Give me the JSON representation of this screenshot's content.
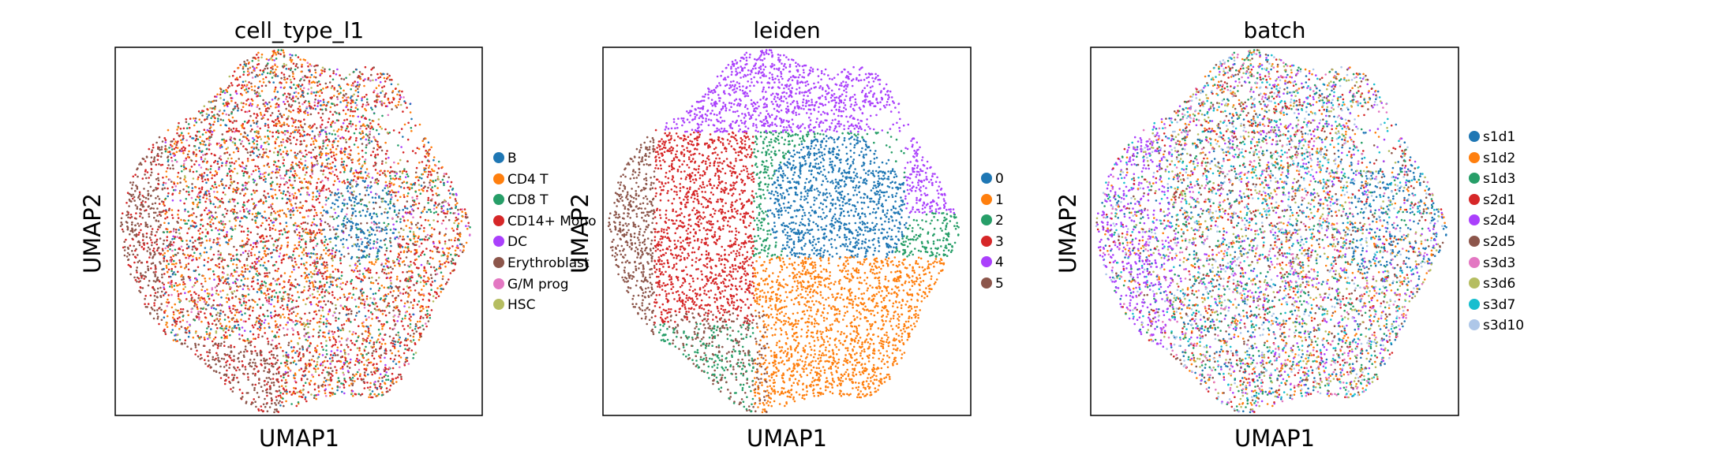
{
  "chart_data": [
    {
      "type": "scatter",
      "title": "cell_type_l1",
      "xlabel": "UMAP1",
      "ylabel": "UMAP2",
      "grid": false,
      "legend_position": "right",
      "series": [
        {
          "name": "B",
          "color": "#1f77b4"
        },
        {
          "name": "CD4 T",
          "color": "#ff7f0e"
        },
        {
          "name": "CD8 T",
          "color": "#279e68"
        },
        {
          "name": "CD14+ Mono",
          "color": "#d62728"
        },
        {
          "name": "DC",
          "color": "#aa40fc"
        },
        {
          "name": "Erythroblast",
          "color": "#8c564b"
        },
        {
          "name": "G/M prog",
          "color": "#e377c2"
        },
        {
          "name": "HSC",
          "color": "#b5bd61"
        }
      ]
    },
    {
      "type": "scatter",
      "title": "leiden",
      "xlabel": "UMAP1",
      "ylabel": "UMAP2",
      "grid": false,
      "legend_position": "right",
      "series": [
        {
          "name": "0",
          "color": "#1f77b4"
        },
        {
          "name": "1",
          "color": "#ff7f0e"
        },
        {
          "name": "2",
          "color": "#279e68"
        },
        {
          "name": "3",
          "color": "#d62728"
        },
        {
          "name": "4",
          "color": "#aa40fc"
        },
        {
          "name": "5",
          "color": "#8c564b"
        }
      ]
    },
    {
      "type": "scatter",
      "title": "batch",
      "xlabel": "UMAP1",
      "ylabel": "UMAP2",
      "grid": false,
      "legend_position": "right",
      "series": [
        {
          "name": "s1d1",
          "color": "#1f77b4"
        },
        {
          "name": "s1d2",
          "color": "#ff7f0e"
        },
        {
          "name": "s1d3",
          "color": "#279e68"
        },
        {
          "name": "s2d1",
          "color": "#d62728"
        },
        {
          "name": "s2d4",
          "color": "#aa40fc"
        },
        {
          "name": "s2d5",
          "color": "#8c564b"
        },
        {
          "name": "s3d3",
          "color": "#e377c2"
        },
        {
          "name": "s3d6",
          "color": "#b5bd61"
        },
        {
          "name": "s3d7",
          "color": "#17becf"
        },
        {
          "name": "s3d10",
          "color": "#aec7e8"
        }
      ]
    }
  ]
}
